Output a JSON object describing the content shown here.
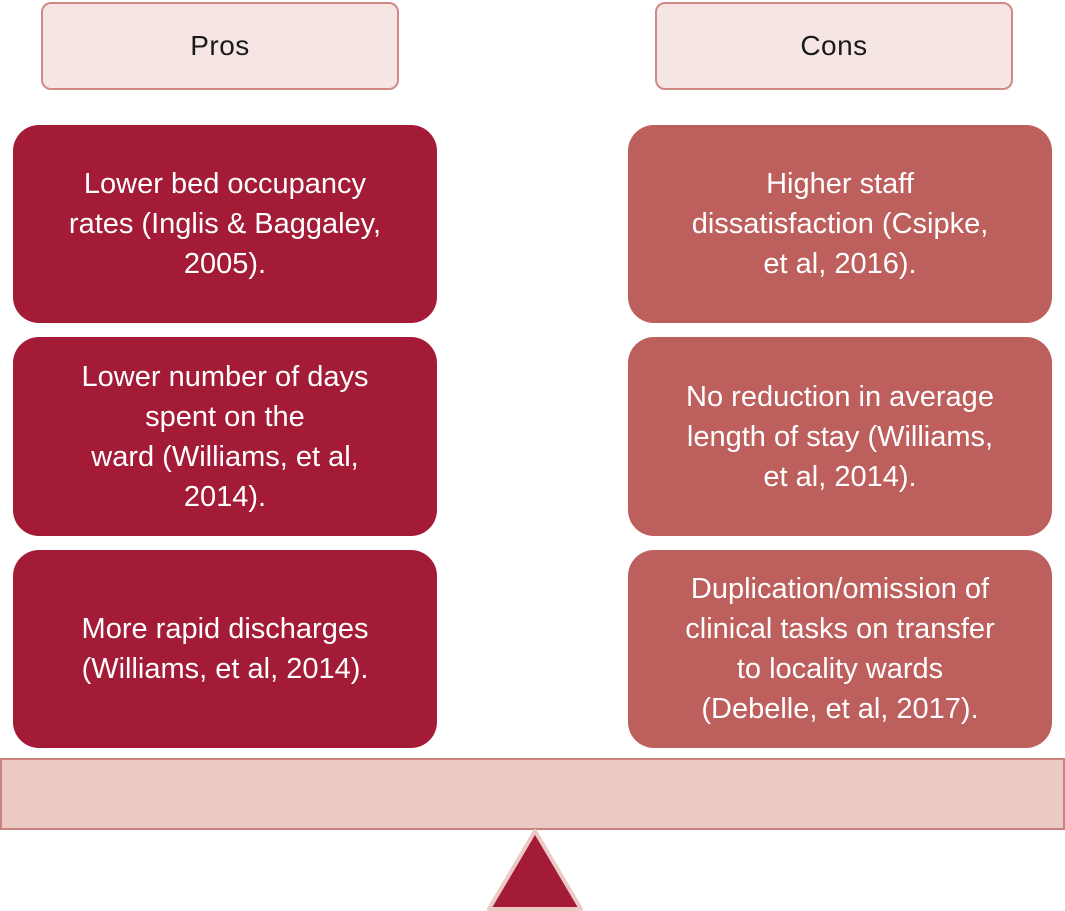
{
  "headers": {
    "pros": "Pros",
    "cons": "Cons"
  },
  "pros": [
    {
      "lines": [
        "Lower bed occupancy",
        "rates (Inglis & Baggaley,",
        "2005)."
      ]
    },
    {
      "lines": [
        "Lower number of days",
        "spent on the",
        "ward (Williams, et al,",
        "2014)."
      ]
    },
    {
      "lines": [
        "More rapid discharges",
        "(Williams, et al, 2014)."
      ]
    }
  ],
  "cons": [
    {
      "lines": [
        "Higher staff",
        "dissatisfaction (Csipke,",
        "et al, 2016)."
      ]
    },
    {
      "lines": [
        "No reduction in average",
        "length of stay (Williams,",
        "et al, 2014)."
      ]
    },
    {
      "lines": [
        "Duplication/omission of",
        "clinical tasks on transfer",
        "to locality wards",
        "(Debelle, et al, 2017)."
      ]
    }
  ],
  "colors": {
    "pro_fill": "#a31b36",
    "con_fill": "#bd5f5c",
    "header_fill": "#f5e6e4",
    "header_border": "#d08a86",
    "beam_fill": "#ebcac6",
    "fulcrum_fill": "#a31b36"
  }
}
